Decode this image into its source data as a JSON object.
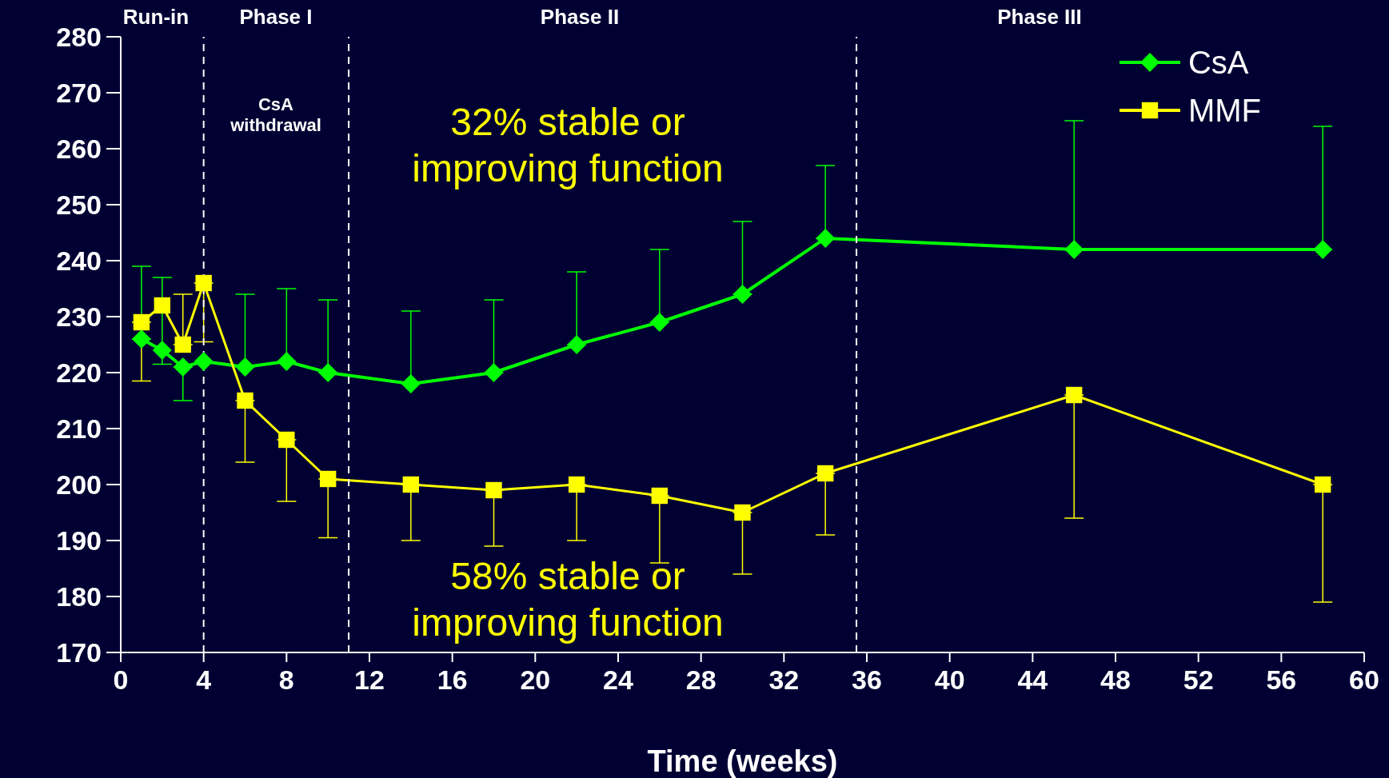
{
  "chart_data": {
    "type": "line",
    "xlabel": "Time (weeks)",
    "x": [
      1,
      2,
      3,
      4,
      6,
      8,
      10,
      14,
      18,
      22,
      26,
      30,
      34,
      46,
      58
    ],
    "series": [
      {
        "name": "CsA",
        "color": "#00ff00",
        "marker": "diamond",
        "values": [
          226,
          224,
          221,
          222,
          221,
          222,
          220,
          218,
          220,
          225,
          229,
          234,
          244,
          242,
          242
        ],
        "errors": [
          [
            226,
            239
          ],
          [
            221.5,
            237
          ],
          [
            215,
            221
          ],
          null,
          [
            221,
            234
          ],
          [
            222,
            235
          ],
          [
            220,
            233
          ],
          [
            218,
            231
          ],
          [
            220,
            233
          ],
          [
            225,
            238
          ],
          [
            229,
            242
          ],
          [
            234,
            247
          ],
          [
            244,
            257
          ],
          [
            242,
            265
          ],
          [
            242,
            264
          ]
        ]
      },
      {
        "name": "MMF",
        "color": "#ffff00",
        "marker": "square",
        "values": [
          229,
          232,
          225,
          236,
          215,
          208,
          201,
          200,
          199,
          200,
          198,
          195,
          202,
          216,
          200
        ],
        "errors": [
          [
            218.5,
            229
          ],
          null,
          [
            225,
            234
          ],
          [
            225.5,
            236
          ],
          [
            204,
            215
          ],
          [
            197,
            208
          ],
          [
            190.5,
            201
          ],
          [
            190,
            200
          ],
          [
            189,
            199
          ],
          [
            190,
            200
          ],
          [
            186,
            198
          ],
          [
            184,
            195
          ],
          [
            191,
            202
          ],
          [
            194,
            216
          ],
          [
            179,
            200
          ]
        ]
      }
    ],
    "xlim": [
      0,
      60
    ],
    "xticks": [
      0,
      4,
      8,
      12,
      16,
      20,
      24,
      28,
      32,
      36,
      40,
      44,
      48,
      52,
      56,
      60
    ],
    "ylim": [
      170,
      280
    ],
    "yticks": [
      170,
      180,
      190,
      200,
      210,
      220,
      230,
      240,
      250,
      260,
      270,
      280
    ],
    "legend": "top right",
    "ref_lines": [
      {
        "axis": "x",
        "value": 4,
        "color": "#ffffff",
        "line_style": "dashed"
      },
      {
        "axis": "x",
        "value": 11,
        "color": "#ffffff",
        "line_style": "dashed"
      },
      {
        "axis": "x",
        "value": 35.5,
        "color": "#ffffff",
        "line_style": "dashed"
      }
    ],
    "annotations": [
      "Run-in",
      "Phase I",
      "Phase II",
      "Phase III",
      "CsA withdrawal",
      "32% stable or improving function",
      "58% stable or improving function"
    ]
  }
}
